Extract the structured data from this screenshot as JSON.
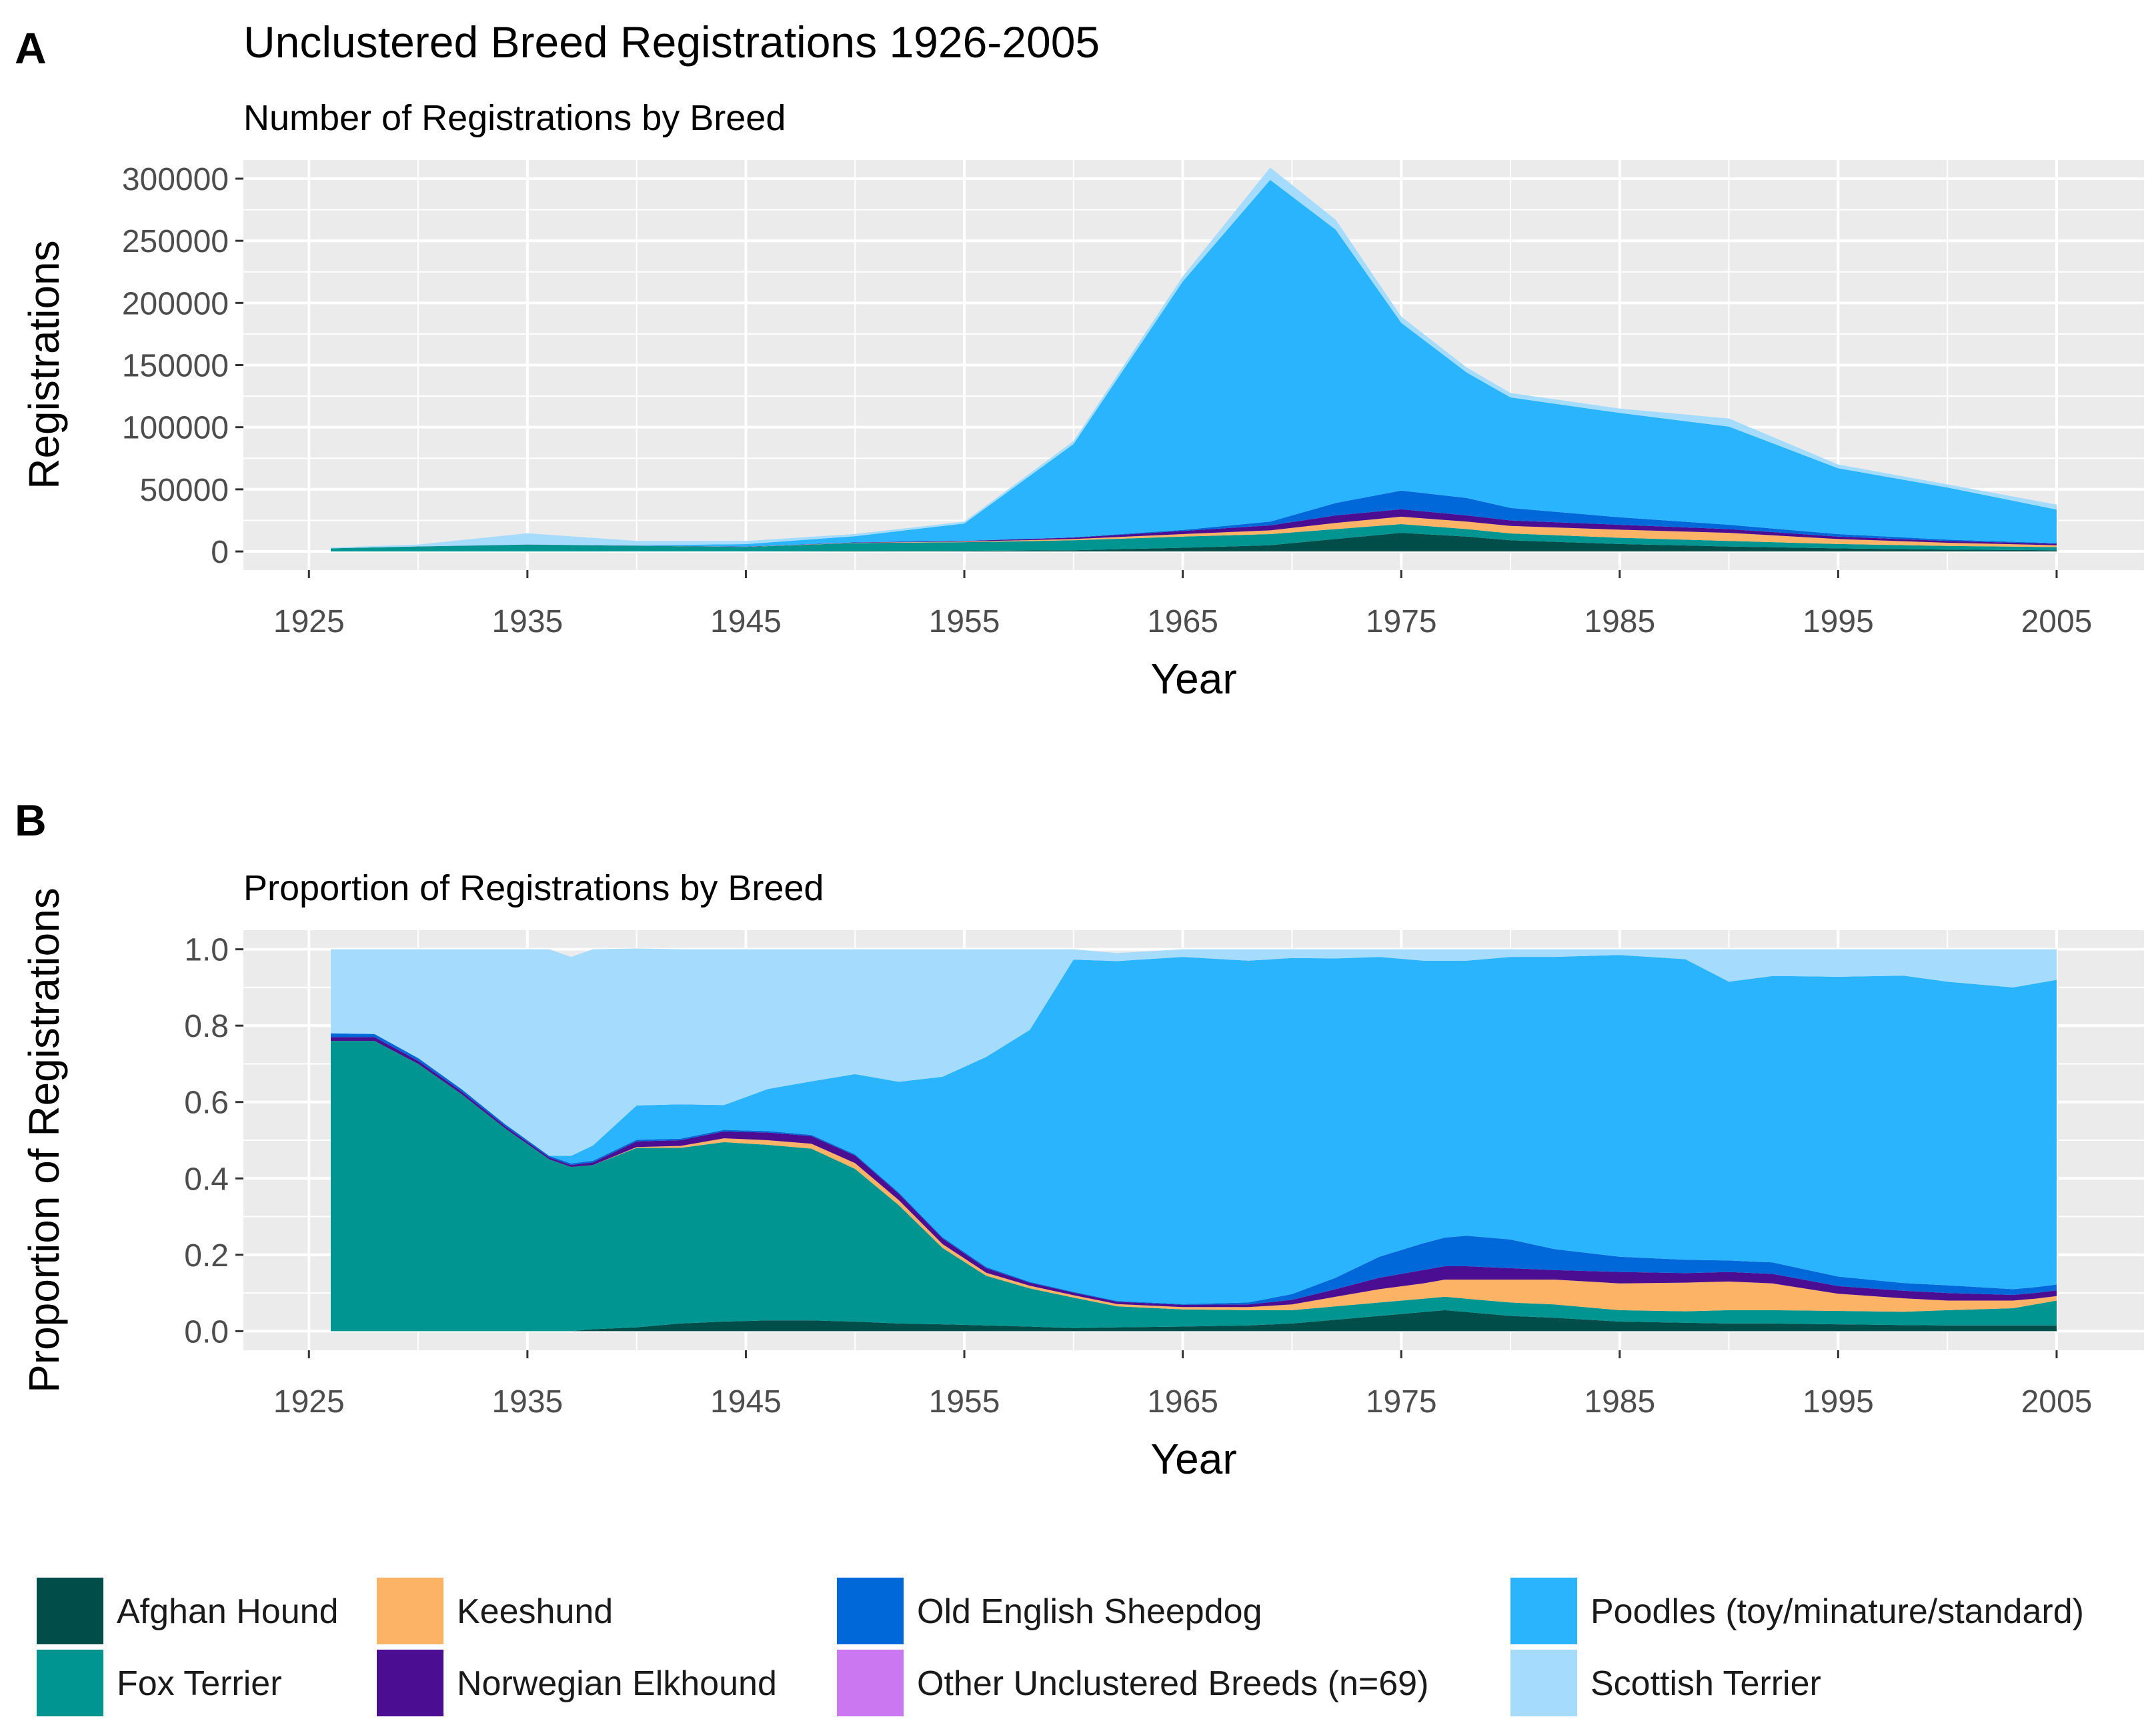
{
  "chart_data": [
    {
      "panel_label": "A",
      "type": "area",
      "stacked": true,
      "title": "Unclustered Breed Registrations 1926-2005",
      "subtitle": "Number of Registrations by Breed",
      "xlabel": "Year",
      "ylabel": "Registrations",
      "xlim": [
        1922,
        2009
      ],
      "ylim": [
        -15000,
        315000
      ],
      "x_ticks": [
        1925,
        1935,
        1945,
        1955,
        1965,
        1975,
        1985,
        1995,
        2005
      ],
      "y_ticks": [
        0,
        50000,
        100000,
        150000,
        200000,
        250000,
        300000
      ],
      "y_tick_labels": [
        "0",
        "50000",
        "100000",
        "150000",
        "200000",
        "250000",
        "300000"
      ],
      "grid": true,
      "x": [
        1926,
        1930,
        1935,
        1940,
        1945,
        1950,
        1955,
        1960,
        1965,
        1969,
        1972,
        1975,
        1978,
        1980,
        1985,
        1990,
        1995,
        2000,
        2005
      ],
      "series": [
        {
          "name": "Afghan Hound",
          "values": [
            0,
            0,
            0,
            100,
            150,
            300,
            500,
            1000,
            3000,
            5000,
            10000,
            15000,
            12000,
            9000,
            6000,
            4000,
            2500,
            1500,
            1000
          ]
        },
        {
          "name": "Fox Terrier",
          "values": [
            2500,
            4000,
            5500,
            4500,
            3500,
            6500,
            7000,
            8000,
            9000,
            9000,
            8000,
            7000,
            6000,
            5500,
            5000,
            4500,
            3500,
            3000,
            2500
          ]
        },
        {
          "name": "Keeshund",
          "values": [
            0,
            0,
            0,
            50,
            100,
            200,
            400,
            1000,
            2000,
            3000,
            5000,
            6000,
            6000,
            6000,
            6500,
            6500,
            4000,
            2500,
            1500
          ]
        },
        {
          "name": "Norwegian Elkhound",
          "values": [
            0,
            50,
            100,
            100,
            150,
            300,
            600,
            1200,
            2500,
            4000,
            6000,
            6000,
            5000,
            4500,
            4000,
            3000,
            2000,
            1500,
            1200
          ]
        },
        {
          "name": "Old English Sheepdog",
          "values": [
            0,
            0,
            0,
            0,
            0,
            0,
            0,
            200,
            800,
            3000,
            10000,
            15000,
            14000,
            10000,
            6000,
            3500,
            2000,
            1000,
            500
          ]
        },
        {
          "name": "Other Unclustered Breeds (n=69)",
          "values": [
            0,
            0,
            0,
            0,
            0,
            0,
            0,
            0,
            0,
            0,
            0,
            0,
            0,
            0,
            0,
            0,
            0,
            0,
            0
          ]
        },
        {
          "name": "Poodles (toy/minature/standard)",
          "values": [
            0,
            0,
            0,
            200,
            2000,
            5000,
            14000,
            75000,
            200000,
            275000,
            220000,
            135000,
            101000,
            89000,
            84000,
            79000,
            53000,
            42000,
            27000
          ]
        },
        {
          "name": "Scottish Terrier",
          "values": [
            700,
            1500,
            9000,
            3500,
            2500,
            1800,
            1500,
            2500,
            4000,
            10000,
            8000,
            5000,
            4000,
            3500,
            3500,
            6500,
            3000,
            2500,
            4000
          ]
        }
      ]
    },
    {
      "panel_label": "B",
      "type": "area",
      "stacked": true,
      "title": "",
      "subtitle": "Proportion of Registrations by Breed",
      "xlabel": "Year",
      "ylabel": "Proportion of Registrations",
      "xlim": [
        1922,
        2009
      ],
      "ylim": [
        -0.05,
        1.05
      ],
      "x_ticks": [
        1925,
        1935,
        1945,
        1955,
        1965,
        1975,
        1985,
        1995,
        2005
      ],
      "y_ticks": [
        0.0,
        0.2,
        0.4,
        0.6,
        0.8,
        1.0
      ],
      "y_tick_labels": [
        "0.0",
        "0.2",
        "0.4",
        "0.6",
        "0.8",
        "1.0"
      ],
      "grid": true,
      "x": [
        1926,
        1928,
        1930,
        1932,
        1934,
        1936,
        1937,
        1938,
        1940,
        1942,
        1944,
        1946,
        1948,
        1950,
        1952,
        1954,
        1956,
        1958,
        1960,
        1962,
        1965,
        1968,
        1970,
        1972,
        1974,
        1976,
        1977,
        1978,
        1980,
        1982,
        1985,
        1988,
        1990,
        1992,
        1995,
        1998,
        2000,
        2003,
        2004,
        2005
      ],
      "series": [
        {
          "name": "Afghan Hound",
          "values": [
            0,
            0,
            0,
            0,
            0,
            0,
            0,
            0.005,
            0.01,
            0.02,
            0.025,
            0.028,
            0.028,
            0.025,
            0.02,
            0.018,
            0.015,
            0.012,
            0.008,
            0.01,
            0.012,
            0.015,
            0.02,
            0.03,
            0.04,
            0.05,
            0.055,
            0.05,
            0.04,
            0.035,
            0.025,
            0.022,
            0.02,
            0.02,
            0.018,
            0.016,
            0.015,
            0.015,
            0.015,
            0.015
          ]
        },
        {
          "name": "Fox Terrier",
          "values": [
            0.76,
            0.76,
            0.7,
            0.62,
            0.53,
            0.45,
            0.43,
            0.43,
            0.47,
            0.46,
            0.47,
            0.46,
            0.45,
            0.4,
            0.31,
            0.2,
            0.13,
            0.1,
            0.08,
            0.055,
            0.045,
            0.04,
            0.035,
            0.035,
            0.035,
            0.035,
            0.035,
            0.035,
            0.035,
            0.035,
            0.03,
            0.03,
            0.035,
            0.035,
            0.035,
            0.035,
            0.04,
            0.045,
            0.055,
            0.065
          ]
        },
        {
          "name": "Keeshund",
          "values": [
            0,
            0,
            0,
            0,
            0,
            0,
            0,
            0,
            0.002,
            0.005,
            0.01,
            0.012,
            0.013,
            0.015,
            0.013,
            0.01,
            0.008,
            0.007,
            0.006,
            0.006,
            0.006,
            0.008,
            0.015,
            0.025,
            0.035,
            0.04,
            0.045,
            0.05,
            0.06,
            0.065,
            0.07,
            0.075,
            0.075,
            0.07,
            0.045,
            0.035,
            0.025,
            0.02,
            0.015,
            0.012
          ]
        },
        {
          "name": "Norwegian Elkhound",
          "values": [
            0.01,
            0.01,
            0.008,
            0.007,
            0.006,
            0.005,
            0.005,
            0.007,
            0.015,
            0.015,
            0.018,
            0.02,
            0.02,
            0.02,
            0.017,
            0.015,
            0.012,
            0.008,
            0.007,
            0.006,
            0.006,
            0.007,
            0.012,
            0.02,
            0.03,
            0.035,
            0.035,
            0.035,
            0.03,
            0.025,
            0.03,
            0.025,
            0.025,
            0.025,
            0.02,
            0.02,
            0.02,
            0.015,
            0.015,
            0.015
          ]
        },
        {
          "name": "Old English Sheepdog",
          "values": [
            0.01,
            0.008,
            0.007,
            0.006,
            0.005,
            0.004,
            0.004,
            0.004,
            0.004,
            0.004,
            0.004,
            0.004,
            0.003,
            0.003,
            0.003,
            0.003,
            0.003,
            0.002,
            0.002,
            0.002,
            0.002,
            0.005,
            0.015,
            0.03,
            0.055,
            0.07,
            0.075,
            0.08,
            0.075,
            0.055,
            0.04,
            0.035,
            0.03,
            0.03,
            0.025,
            0.02,
            0.02,
            0.015,
            0.015,
            0.015
          ]
        },
        {
          "name": "Other Unclustered Breeds (n=69)",
          "values": [
            0,
            0,
            0,
            0,
            0,
            0,
            0,
            0,
            0,
            0,
            0,
            0,
            0,
            0,
            0,
            0,
            0,
            0,
            0,
            0,
            0,
            0,
            0,
            0,
            0,
            0,
            0,
            0,
            0,
            0,
            0,
            0,
            0,
            0,
            0,
            0,
            0,
            0,
            0,
            0
          ]
        },
        {
          "name": "Poodles (toy/minature/standard)",
          "values": [
            0,
            0,
            0,
            0,
            0,
            0,
            0.02,
            0.04,
            0.09,
            0.09,
            0.065,
            0.11,
            0.14,
            0.21,
            0.29,
            0.42,
            0.55,
            0.66,
            0.87,
            0.89,
            0.909,
            0.895,
            0.88,
            0.836,
            0.785,
            0.74,
            0.725,
            0.72,
            0.74,
            0.765,
            0.79,
            0.787,
            0.73,
            0.75,
            0.785,
            0.805,
            0.795,
            0.79,
            0.795,
            0.798
          ]
        },
        {
          "name": "Scottish Terrier",
          "values": [
            0.22,
            0.222,
            0.285,
            0.367,
            0.459,
            0.541,
            0.521,
            0.514,
            0.411,
            0.406,
            0.408,
            0.366,
            0.346,
            0.327,
            0.347,
            0.334,
            0.282,
            0.211,
            0.027,
            0.021,
            0.02,
            0.03,
            0.023,
            0.024,
            0.02,
            0.03,
            0.03,
            0.03,
            0.02,
            0.02,
            0.015,
            0.026,
            0.085,
            0.07,
            0.072,
            0.069,
            0.085,
            0.1,
            0.09,
            0.08
          ]
        }
      ]
    }
  ],
  "legend": {
    "placement": "bottom",
    "items": [
      {
        "label": "Afghan Hound",
        "color": "#004d4a"
      },
      {
        "label": "Fox Terrier",
        "color": "#009590"
      },
      {
        "label": "Keeshund",
        "color": "#fdb366"
      },
      {
        "label": "Norwegian Elkhound",
        "color": "#4b0e92"
      },
      {
        "label": "Old English Sheepdog",
        "color": "#0068d8"
      },
      {
        "label": "Other Unclustered Breeds (n=69)",
        "color": "#cb77f2"
      },
      {
        "label": "Poodles (toy/minature/standard)",
        "color": "#2ab4fd"
      },
      {
        "label": "Scottish Terrier",
        "color": "#a5dbfd"
      }
    ]
  },
  "colors": {
    "panel_background": "#ebebeb",
    "grid_major": "#ffffff",
    "tick_text": "#4d4d4d"
  }
}
